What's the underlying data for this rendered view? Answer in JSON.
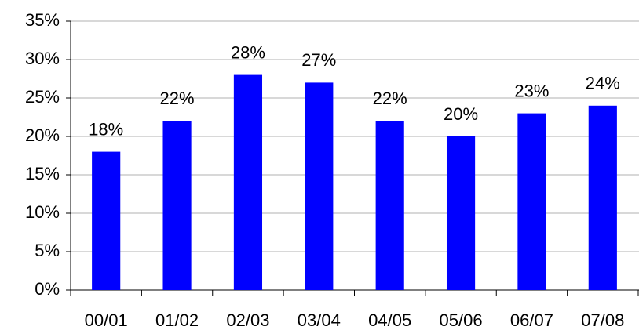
{
  "chart_data": {
    "type": "bar",
    "categories": [
      "00/01",
      "01/02",
      "02/03",
      "03/04",
      "04/05",
      "05/06",
      "06/07",
      "07/08"
    ],
    "values": [
      18,
      22,
      28,
      27,
      22,
      20,
      23,
      24
    ],
    "value_labels": [
      "18%",
      "22%",
      "28%",
      "27%",
      "22%",
      "20%",
      "23%",
      "24%"
    ],
    "color": "#0000ff",
    "ylim": [
      0,
      35
    ],
    "yticks": [
      {
        "value": 0,
        "label": "0%"
      },
      {
        "value": 5,
        "label": "5%"
      },
      {
        "value": 10,
        "label": "10%"
      },
      {
        "value": 15,
        "label": "15%"
      },
      {
        "value": 20,
        "label": "20%"
      },
      {
        "value": 25,
        "label": "25%"
      },
      {
        "value": 30,
        "label": "30%"
      },
      {
        "value": 35,
        "label": "35%"
      }
    ],
    "grid": true
  }
}
